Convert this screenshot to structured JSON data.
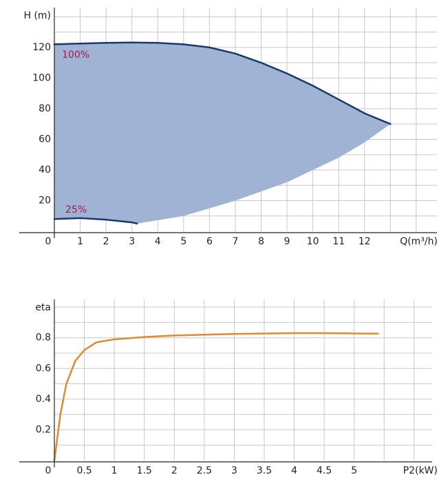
{
  "chart_data": [
    {
      "type": "area_line",
      "ylabel": "H (m)",
      "xlabel": "Q(m³/h)",
      "xlim": [
        0,
        14.8
      ],
      "ylim": [
        0,
        146
      ],
      "xticks": [
        0,
        1,
        2,
        3,
        4,
        5,
        6,
        7,
        8,
        9,
        10,
        11,
        12
      ],
      "yticks": [
        20,
        40,
        60,
        80,
        100,
        120
      ],
      "xgrid": [
        1,
        2,
        3,
        4,
        5,
        6,
        7,
        8,
        9,
        10,
        11,
        12,
        13,
        14
      ],
      "ygrid": [
        10,
        20,
        30,
        40,
        50,
        60,
        70,
        80,
        90,
        100,
        110,
        120,
        130,
        140
      ],
      "series": [
        {
          "name": "100%",
          "color": "#173a6b",
          "label_color": "#a0184a",
          "x": [
            0,
            1,
            2,
            3,
            4,
            5,
            6,
            7,
            8,
            9,
            10,
            11,
            12,
            13
          ],
          "values": [
            122,
            122.5,
            123,
            123.2,
            123,
            122,
            120,
            116,
            110,
            103,
            95,
            86,
            77,
            70
          ]
        },
        {
          "name": "25%",
          "color": "#173a6b",
          "label_color": "#a0184a",
          "x": [
            0,
            1,
            2,
            3,
            3.2
          ],
          "values": [
            8,
            8.6,
            7.6,
            5.8,
            5
          ]
        }
      ],
      "area": {
        "color": "#a1b3d5",
        "x": [
          3.2,
          5,
          7,
          9,
          11,
          12,
          13
        ],
        "values": [
          5,
          10,
          20,
          32,
          48,
          58,
          70
        ]
      }
    },
    {
      "type": "line",
      "ylabel": "eta",
      "xlabel": "P2(kW)",
      "xlim": [
        0,
        6.3
      ],
      "ylim": [
        0,
        1.05
      ],
      "xticks": [
        0,
        0.5,
        1,
        1.5,
        2,
        2.5,
        3,
        3.5,
        4,
        4.5,
        5
      ],
      "yticks": [
        0.2,
        0.4,
        0.6,
        0.8
      ],
      "xgrid": [
        0.5,
        1,
        1.5,
        2,
        2.5,
        3,
        3.5,
        4,
        4.5,
        5,
        5.5,
        6
      ],
      "ygrid": [
        0.1,
        0.2,
        0.3,
        0.4,
        0.5,
        0.6,
        0.7,
        0.8,
        0.9,
        1
      ],
      "series": [
        {
          "color": "#e08a2c",
          "x": [
            0,
            0.1,
            0.2,
            0.35,
            0.5,
            0.7,
            1,
            1.5,
            2,
            3,
            4,
            4.5,
            5,
            5.4
          ],
          "values": [
            0,
            0.3,
            0.5,
            0.65,
            0.72,
            0.77,
            0.79,
            0.805,
            0.815,
            0.825,
            0.83,
            0.83,
            0.828,
            0.827
          ]
        }
      ]
    }
  ]
}
